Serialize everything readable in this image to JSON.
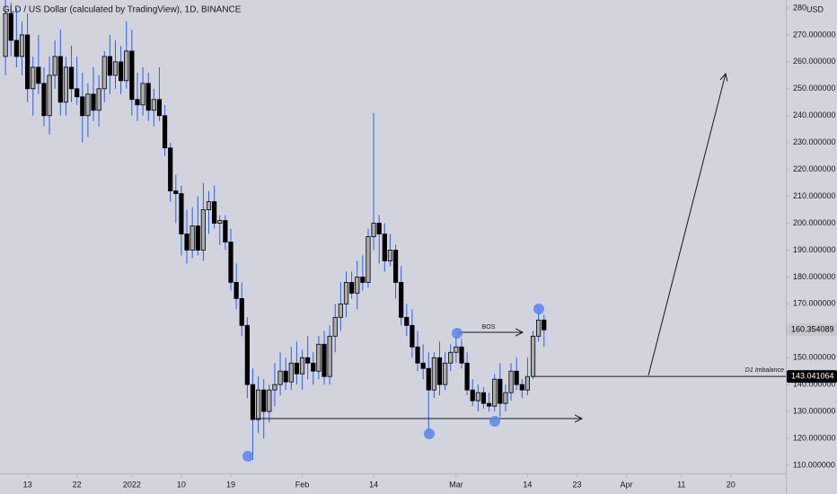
{
  "chart_data": {
    "type": "candlestick",
    "title": "GLD / US Dollar (calculated by TradingView), 1D, BINANCE",
    "currency": "USD",
    "up_color": "#a9abb0",
    "down_color": "#000000",
    "wick_color": "#2f5cf0",
    "x": [
      "2021-12-09",
      "2021-12-10",
      "2021-12-11",
      "2021-12-12",
      "2021-12-13",
      "2021-12-14",
      "2021-12-15",
      "2021-12-16",
      "2021-12-17",
      "2021-12-18",
      "2021-12-19",
      "2021-12-20",
      "2021-12-21",
      "2021-12-22",
      "2021-12-23",
      "2021-12-24",
      "2021-12-25",
      "2021-12-26",
      "2021-12-27",
      "2021-12-28",
      "2021-12-29",
      "2021-12-30",
      "2021-12-31",
      "2022-01-01",
      "2022-01-02",
      "2022-01-03",
      "2022-01-04",
      "2022-01-05",
      "2022-01-06",
      "2022-01-07",
      "2022-01-08",
      "2022-01-09",
      "2022-01-10",
      "2022-01-11",
      "2022-01-12",
      "2022-01-13",
      "2022-01-14",
      "2022-01-15",
      "2022-01-16",
      "2022-01-17",
      "2022-01-18",
      "2022-01-19",
      "2022-01-20",
      "2022-01-21",
      "2022-01-22",
      "2022-01-23",
      "2022-01-24",
      "2022-01-25",
      "2022-01-26",
      "2022-01-27",
      "2022-01-28",
      "2022-01-29",
      "2022-01-30",
      "2022-01-31",
      "2022-02-01",
      "2022-02-02",
      "2022-02-03",
      "2022-02-04",
      "2022-02-05",
      "2022-02-06",
      "2022-02-07",
      "2022-02-08",
      "2022-02-09",
      "2022-02-10",
      "2022-02-11",
      "2022-02-12",
      "2022-02-13",
      "2022-02-14",
      "2022-02-15",
      "2022-02-16",
      "2022-02-17",
      "2022-02-18",
      "2022-02-19",
      "2022-02-20",
      "2022-02-21",
      "2022-02-22",
      "2022-02-23",
      "2022-02-24",
      "2022-02-25",
      "2022-02-26",
      "2022-02-27",
      "2022-02-28",
      "2022-03-01",
      "2022-03-02",
      "2022-03-03",
      "2022-03-04",
      "2022-03-05",
      "2022-03-06",
      "2022-03-07",
      "2022-03-08",
      "2022-03-09",
      "2022-03-10",
      "2022-03-11",
      "2022-03-12",
      "2022-03-13",
      "2022-03-14",
      "2022-03-15",
      "2022-03-16",
      "2022-03-17"
    ],
    "open": [
      262,
      278,
      268,
      262,
      270,
      250,
      258,
      252,
      240,
      255,
      262,
      245,
      258,
      250,
      247,
      240,
      248,
      242,
      250,
      262,
      255,
      260,
      253,
      264,
      246,
      244,
      252,
      242,
      246,
      240,
      228,
      212,
      211,
      196,
      190,
      199,
      190,
      205,
      208,
      200,
      201,
      193,
      178,
      172,
      162,
      140,
      127,
      138,
      130,
      138,
      140,
      145,
      141,
      148,
      144,
      150,
      148,
      145,
      155,
      143,
      158,
      165,
      170,
      178,
      174,
      180,
      178,
      195,
      200,
      196,
      186,
      190,
      178,
      165,
      162,
      154,
      148,
      146,
      138,
      150,
      140,
      148,
      152,
      154,
      148,
      138,
      134,
      137,
      133,
      132,
      142,
      133,
      137,
      145,
      140,
      138,
      143,
      158,
      164
    ],
    "high": [
      285,
      282,
      280,
      275,
      278,
      262,
      270,
      258,
      262,
      268,
      272,
      262,
      266,
      262,
      256,
      252,
      258,
      255,
      264,
      270,
      268,
      266,
      275,
      272,
      256,
      258,
      256,
      250,
      258,
      244,
      230,
      218,
      214,
      205,
      206,
      210,
      215,
      212,
      214,
      203,
      203,
      198,
      185,
      178,
      165,
      146,
      143,
      142,
      140,
      148,
      152,
      150,
      154,
      156,
      153,
      158,
      152,
      158,
      160,
      162,
      170,
      178,
      182,
      182,
      186,
      188,
      198,
      241,
      203,
      200,
      196,
      192,
      184,
      170,
      168,
      160,
      155,
      152,
      152,
      156,
      152,
      155,
      158,
      157,
      152,
      142,
      140,
      139,
      137,
      144,
      148,
      140,
      148,
      150,
      142,
      150,
      160,
      169,
      166
    ],
    "low": [
      255,
      262,
      258,
      255,
      245,
      240,
      248,
      236,
      233,
      250,
      240,
      240,
      245,
      244,
      230,
      232,
      238,
      236,
      245,
      248,
      250,
      248,
      250,
      240,
      238,
      240,
      238,
      236,
      238,
      225,
      208,
      200,
      188,
      185,
      187,
      188,
      186,
      196,
      198,
      192,
      190,
      175,
      168,
      158,
      135,
      112,
      122,
      120,
      126,
      132,
      136,
      138,
      138,
      140,
      138,
      142,
      140,
      142,
      140,
      140,
      152,
      160,
      165,
      172,
      168,
      175,
      176,
      190,
      185,
      182,
      184,
      172,
      162,
      158,
      150,
      145,
      142,
      122,
      135,
      136,
      138,
      145,
      148,
      146,
      136,
      132,
      130,
      131,
      130,
      130,
      128,
      130,
      134,
      138,
      135,
      136,
      142,
      156,
      154
    ],
    "close": [
      278,
      268,
      262,
      270,
      250,
      258,
      252,
      240,
      255,
      262,
      245,
      258,
      250,
      247,
      240,
      248,
      242,
      250,
      262,
      255,
      260,
      253,
      264,
      246,
      244,
      252,
      242,
      246,
      240,
      228,
      212,
      211,
      196,
      190,
      199,
      190,
      205,
      208,
      200,
      201,
      193,
      178,
      172,
      162,
      140,
      127,
      138,
      130,
      138,
      140,
      145,
      141,
      148,
      144,
      150,
      148,
      145,
      155,
      143,
      158,
      165,
      170,
      178,
      174,
      180,
      178,
      195,
      200,
      196,
      186,
      190,
      178,
      165,
      162,
      154,
      148,
      146,
      138,
      150,
      140,
      148,
      152,
      154,
      148,
      138,
      134,
      137,
      133,
      132,
      142,
      133,
      137,
      145,
      140,
      138,
      143,
      158,
      164,
      160.354089
    ],
    "xlim": [
      "2021-12-08",
      "2022-04-30"
    ],
    "xticks": [
      {
        "value": "2021-12-13",
        "label": "13"
      },
      {
        "value": "2021-12-22",
        "label": "22"
      },
      {
        "value": "2022-01-01",
        "label": "2022"
      },
      {
        "value": "2022-01-10",
        "label": "10"
      },
      {
        "value": "2022-01-19",
        "label": "19"
      },
      {
        "value": "2022-02-01",
        "label": "Feb"
      },
      {
        "value": "2022-02-14",
        "label": "14"
      },
      {
        "value": "2022-03-01",
        "label": "Mar"
      },
      {
        "value": "2022-03-14",
        "label": "14"
      },
      {
        "value": "2022-03-23",
        "label": "23"
      },
      {
        "value": "2022-04-01",
        "label": "Apr"
      },
      {
        "value": "2022-04-11",
        "label": "11"
      },
      {
        "value": "2022-04-20",
        "label": "20"
      }
    ],
    "ylim": [
      107,
      283
    ],
    "yticks": [
      {
        "value": 110,
        "label": "110.000000"
      },
      {
        "value": 120,
        "label": "120.000000"
      },
      {
        "value": 130,
        "label": "130.000000"
      },
      {
        "value": 140,
        "label": "140.000000"
      },
      {
        "value": 150,
        "label": "150.000000"
      },
      {
        "value": 160,
        "label": "160.000000"
      },
      {
        "value": 170,
        "label": "170.000000"
      },
      {
        "value": 180,
        "label": "180.000000"
      },
      {
        "value": 190,
        "label": "190.000000"
      },
      {
        "value": 200,
        "label": "200.000000"
      },
      {
        "value": 210,
        "label": "210.000000"
      },
      {
        "value": 220,
        "label": "220.000000"
      },
      {
        "value": 230,
        "label": "230.000000"
      },
      {
        "value": 240,
        "label": "240.000000"
      },
      {
        "value": 250,
        "label": "250.000000"
      },
      {
        "value": 260,
        "label": "260.000000"
      },
      {
        "value": 270,
        "label": "270.000000"
      },
      {
        "value": 280,
        "label": "280"
      }
    ],
    "price_labels": [
      {
        "value": 160.354089,
        "label": "160.354089",
        "color": "#c6c8cc",
        "text_color": "#000000"
      },
      {
        "value": 143.041064,
        "label": "143.041064",
        "color": "#000000",
        "text_color": "#ffffff"
      }
    ],
    "annotations": [
      "BOS",
      "D1 Imbalance"
    ]
  }
}
